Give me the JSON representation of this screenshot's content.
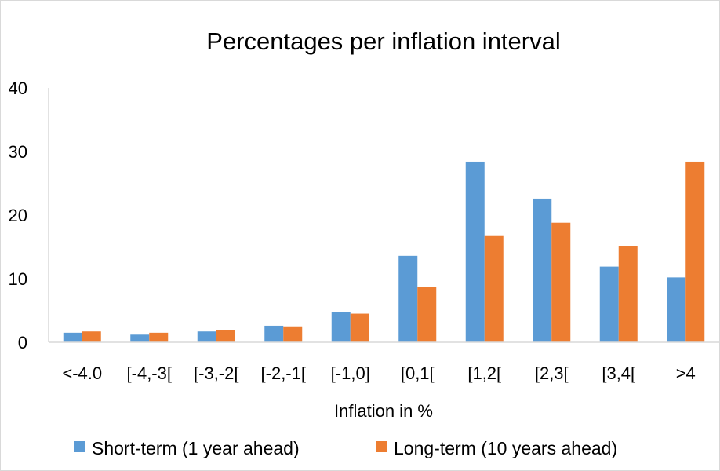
{
  "chart_data": {
    "type": "bar",
    "title": "Percentages per inflation interval",
    "xlabel": "Inflation in %",
    "ylabel": "",
    "ylim": [
      0,
      40
    ],
    "yticks": [
      0,
      10,
      20,
      30,
      40
    ],
    "grid": false,
    "legend_position": "bottom",
    "categories": [
      "<-4.0",
      "[-4,-3[",
      "[-3,-2[",
      "[-2,-1[",
      "[-1,0]",
      "[0,1[",
      "[1,2[",
      "[2,3[",
      "[3,4[",
      ">4"
    ],
    "series": [
      {
        "name": "Short-term (1 year ahead)",
        "color": "#5b9bd5",
        "values": [
          1.5,
          1.2,
          1.7,
          2.6,
          4.7,
          13.6,
          28.4,
          22.6,
          11.9,
          10.2
        ]
      },
      {
        "name": "Long-term (10 years ahead)",
        "color": "#ed7d31",
        "values": [
          1.7,
          1.5,
          1.9,
          2.5,
          4.5,
          8.7,
          16.7,
          18.8,
          15.1,
          28.4
        ]
      }
    ]
  }
}
